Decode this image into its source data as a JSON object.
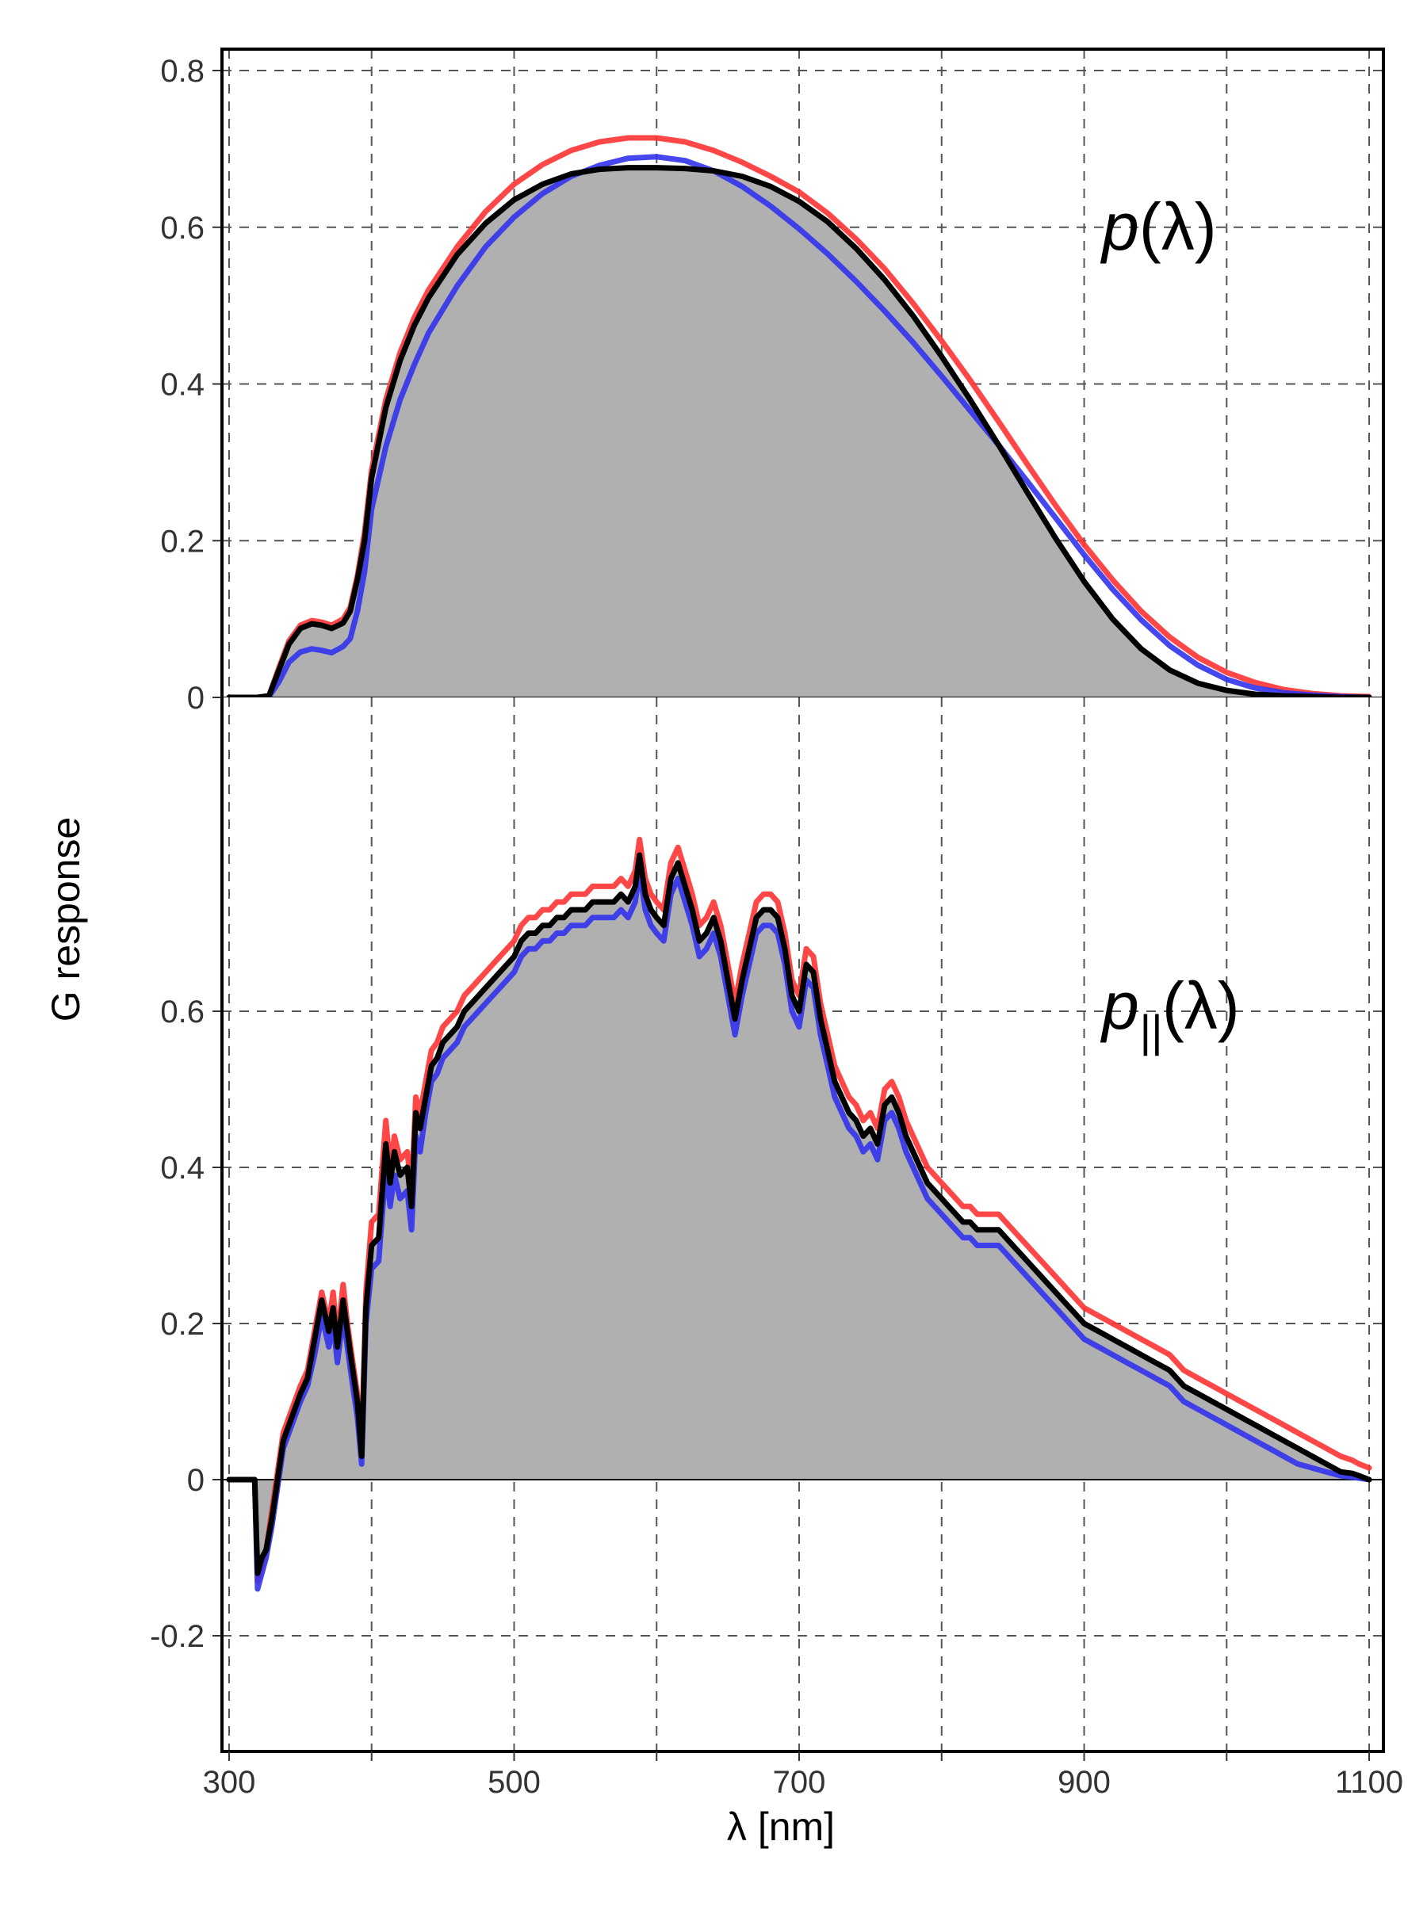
{
  "colors": {
    "fill": "#b0b0b0",
    "black_series": "#000000",
    "red_series": "#ff3333",
    "blue_series": "#3333ee",
    "grid": "#555555",
    "zero_line": "#000000"
  },
  "chart_data": {
    "type": "line",
    "title": "",
    "xlabel": "λ [nm]",
    "ylabel": "G response",
    "xlim": [
      295,
      1110
    ],
    "x_ticks": [
      300,
      500,
      700,
      900,
      1100
    ],
    "x_gridlines": [
      300,
      400,
      500,
      600,
      700,
      800,
      900,
      1000,
      1100
    ],
    "grid": "dashed, major x and y",
    "legend": "none",
    "panels": [
      {
        "label_main": "p",
        "label_sub": "",
        "label_arg": "(λ)",
        "ylim": [
          0,
          0.83
        ],
        "y_ticks": [
          0,
          0.2,
          0.4,
          0.6,
          0.8
        ],
        "y_tick_labels": [
          "0",
          "0.2",
          "0.4",
          "0.6",
          "0.8"
        ],
        "filled_area_series": "black",
        "x": [
          300,
          320,
          328,
          335,
          342,
          350,
          358,
          365,
          372,
          380,
          385,
          390,
          395,
          400,
          410,
          420,
          430,
          440,
          460,
          480,
          500,
          520,
          540,
          560,
          580,
          600,
          620,
          640,
          660,
          680,
          700,
          720,
          740,
          760,
          780,
          800,
          820,
          840,
          860,
          880,
          900,
          920,
          940,
          960,
          980,
          1000,
          1020,
          1040,
          1060,
          1080,
          1100
        ],
        "series": [
          {
            "color_key": "black_series",
            "values": [
              0,
              0,
              0.002,
              0.035,
              0.068,
              0.088,
              0.094,
              0.092,
              0.088,
              0.095,
              0.11,
              0.15,
              0.2,
              0.28,
              0.37,
              0.43,
              0.475,
              0.51,
              0.565,
              0.605,
              0.635,
              0.655,
              0.668,
              0.674,
              0.676,
              0.676,
              0.675,
              0.672,
              0.665,
              0.652,
              0.633,
              0.607,
              0.573,
              0.533,
              0.487,
              0.435,
              0.38,
              0.322,
              0.262,
              0.203,
              0.148,
              0.1,
              0.062,
              0.035,
              0.018,
              0.009,
              0.004,
              0.002,
              0.001,
              0,
              0
            ]
          },
          {
            "color_key": "red_series",
            "values": [
              0,
              0,
              0.002,
              0.038,
              0.072,
              0.092,
              0.098,
              0.096,
              0.092,
              0.1,
              0.115,
              0.155,
              0.21,
              0.29,
              0.38,
              0.44,
              0.485,
              0.52,
              0.575,
              0.62,
              0.655,
              0.68,
              0.698,
              0.709,
              0.714,
              0.714,
              0.709,
              0.698,
              0.683,
              0.665,
              0.645,
              0.618,
              0.585,
              0.547,
              0.503,
              0.455,
              0.405,
              0.352,
              0.298,
              0.245,
              0.195,
              0.15,
              0.11,
              0.077,
              0.051,
              0.032,
              0.019,
              0.01,
              0.005,
              0.002,
              0.001
            ]
          },
          {
            "color_key": "blue_series",
            "values": [
              0,
              0,
              0.001,
              0.02,
              0.045,
              0.058,
              0.062,
              0.06,
              0.057,
              0.065,
              0.075,
              0.11,
              0.16,
              0.24,
              0.32,
              0.38,
              0.425,
              0.465,
              0.525,
              0.575,
              0.613,
              0.643,
              0.665,
              0.679,
              0.688,
              0.69,
              0.685,
              0.672,
              0.652,
              0.627,
              0.598,
              0.566,
              0.531,
              0.493,
              0.453,
              0.41,
              0.366,
              0.322,
              0.276,
              0.229,
              0.182,
              0.138,
              0.099,
              0.066,
              0.041,
              0.023,
              0.012,
              0.006,
              0.003,
              0.001,
              0
            ]
          }
        ]
      },
      {
        "label_main": "p",
        "label_sub": "||",
        "label_arg": "(λ)",
        "ylim": [
          -0.33,
          0.88
        ],
        "y_ticks": [
          -0.2,
          0,
          0.2,
          0.4,
          0.6
        ],
        "y_tick_labels": [
          "-0.2",
          "0",
          "0.2",
          "0.4",
          "0.6"
        ],
        "filled_area_series": "black",
        "x": [
          300,
          318,
          320,
          323,
          326,
          330,
          334,
          338,
          342,
          346,
          350,
          355,
          360,
          365,
          370,
          373,
          376,
          380,
          383,
          386,
          390,
          393,
          396,
          400,
          405,
          410,
          413,
          416,
          420,
          425,
          428,
          431,
          434,
          438,
          442,
          446,
          450,
          455,
          460,
          465,
          470,
          475,
          480,
          485,
          490,
          495,
          500,
          505,
          510,
          515,
          520,
          525,
          530,
          535,
          540,
          545,
          550,
          555,
          560,
          565,
          570,
          575,
          580,
          585,
          588,
          592,
          596,
          600,
          605,
          610,
          615,
          620,
          625,
          630,
          635,
          640,
          645,
          650,
          655,
          660,
          665,
          670,
          675,
          680,
          685,
          690,
          695,
          700,
          705,
          710,
          715,
          720,
          725,
          730,
          735,
          740,
          745,
          750,
          755,
          760,
          765,
          770,
          775,
          780,
          785,
          790,
          795,
          800,
          805,
          810,
          815,
          820,
          825,
          830,
          835,
          840,
          845,
          850,
          855,
          860,
          870,
          880,
          890,
          900,
          910,
          920,
          930,
          940,
          950,
          960,
          970,
          980,
          990,
          1000,
          1010,
          1020,
          1030,
          1040,
          1050,
          1060,
          1070,
          1080,
          1088,
          1093,
          1100
        ],
        "series": [
          {
            "color_key": "black_series",
            "values": [
              0,
              0,
              -0.12,
              -0.1,
              -0.09,
              -0.05,
              0.0,
              0.05,
              0.07,
              0.09,
              0.11,
              0.13,
              0.18,
              0.23,
              0.19,
              0.22,
              0.17,
              0.23,
              0.19,
              0.15,
              0.1,
              0.03,
              0.22,
              0.3,
              0.31,
              0.43,
              0.38,
              0.42,
              0.39,
              0.4,
              0.35,
              0.47,
              0.45,
              0.49,
              0.53,
              0.54,
              0.56,
              0.57,
              0.58,
              0.6,
              0.61,
              0.62,
              0.63,
              0.64,
              0.65,
              0.66,
              0.67,
              0.69,
              0.7,
              0.7,
              0.71,
              0.71,
              0.72,
              0.72,
              0.73,
              0.73,
              0.73,
              0.74,
              0.74,
              0.74,
              0.74,
              0.75,
              0.74,
              0.76,
              0.8,
              0.75,
              0.73,
              0.72,
              0.71,
              0.77,
              0.79,
              0.76,
              0.73,
              0.69,
              0.7,
              0.72,
              0.69,
              0.64,
              0.59,
              0.64,
              0.68,
              0.72,
              0.73,
              0.73,
              0.72,
              0.68,
              0.62,
              0.6,
              0.66,
              0.65,
              0.59,
              0.55,
              0.51,
              0.49,
              0.47,
              0.46,
              0.44,
              0.45,
              0.43,
              0.48,
              0.49,
              0.47,
              0.44,
              0.42,
              0.4,
              0.38,
              0.37,
              0.36,
              0.35,
              0.34,
              0.33,
              0.33,
              0.32,
              0.32,
              0.32,
              0.32,
              0.31,
              0.3,
              0.29,
              0.28,
              0.26,
              0.24,
              0.22,
              0.2,
              0.19,
              0.18,
              0.17,
              0.16,
              0.15,
              0.14,
              0.12,
              0.11,
              0.1,
              0.09,
              0.08,
              0.07,
              0.06,
              0.05,
              0.04,
              0.03,
              0.02,
              0.01,
              0.008,
              0.005,
              0.0
            ]
          },
          {
            "color_key": "red_series",
            "values": [
              0,
              0,
              -0.13,
              -0.11,
              -0.09,
              -0.04,
              0.01,
              0.06,
              0.08,
              0.1,
              0.12,
              0.14,
              0.19,
              0.24,
              0.2,
              0.24,
              0.18,
              0.25,
              0.2,
              0.16,
              0.11,
              0.04,
              0.24,
              0.33,
              0.34,
              0.46,
              0.4,
              0.44,
              0.41,
              0.42,
              0.37,
              0.49,
              0.47,
              0.51,
              0.55,
              0.56,
              0.58,
              0.59,
              0.6,
              0.62,
              0.63,
              0.64,
              0.65,
              0.66,
              0.67,
              0.68,
              0.69,
              0.71,
              0.72,
              0.72,
              0.73,
              0.73,
              0.74,
              0.74,
              0.75,
              0.75,
              0.75,
              0.76,
              0.76,
              0.76,
              0.76,
              0.77,
              0.76,
              0.78,
              0.82,
              0.77,
              0.75,
              0.74,
              0.73,
              0.79,
              0.81,
              0.78,
              0.75,
              0.71,
              0.72,
              0.74,
              0.71,
              0.66,
              0.61,
              0.66,
              0.7,
              0.74,
              0.75,
              0.75,
              0.74,
              0.7,
              0.64,
              0.62,
              0.68,
              0.67,
              0.61,
              0.57,
              0.53,
              0.51,
              0.49,
              0.48,
              0.46,
              0.47,
              0.45,
              0.5,
              0.51,
              0.49,
              0.46,
              0.44,
              0.42,
              0.4,
              0.39,
              0.38,
              0.37,
              0.36,
              0.35,
              0.35,
              0.34,
              0.34,
              0.34,
              0.34,
              0.33,
              0.32,
              0.31,
              0.3,
              0.28,
              0.26,
              0.24,
              0.22,
              0.21,
              0.2,
              0.19,
              0.18,
              0.17,
              0.16,
              0.14,
              0.13,
              0.12,
              0.11,
              0.1,
              0.09,
              0.08,
              0.07,
              0.06,
              0.05,
              0.04,
              0.03,
              0.025,
              0.02,
              0.015
            ]
          },
          {
            "color_key": "blue_series",
            "values": [
              0,
              0,
              -0.14,
              -0.12,
              -0.1,
              -0.06,
              -0.01,
              0.04,
              0.06,
              0.08,
              0.1,
              0.12,
              0.16,
              0.21,
              0.17,
              0.2,
              0.15,
              0.21,
              0.17,
              0.13,
              0.08,
              0.02,
              0.2,
              0.27,
              0.28,
              0.4,
              0.35,
              0.39,
              0.36,
              0.37,
              0.32,
              0.44,
              0.42,
              0.47,
              0.51,
              0.52,
              0.54,
              0.55,
              0.56,
              0.58,
              0.59,
              0.6,
              0.61,
              0.62,
              0.63,
              0.64,
              0.65,
              0.67,
              0.68,
              0.68,
              0.69,
              0.69,
              0.7,
              0.7,
              0.71,
              0.71,
              0.71,
              0.72,
              0.72,
              0.72,
              0.72,
              0.73,
              0.72,
              0.74,
              0.78,
              0.73,
              0.71,
              0.7,
              0.69,
              0.75,
              0.77,
              0.74,
              0.71,
              0.67,
              0.68,
              0.7,
              0.67,
              0.62,
              0.57,
              0.62,
              0.66,
              0.7,
              0.71,
              0.71,
              0.7,
              0.66,
              0.6,
              0.58,
              0.64,
              0.63,
              0.57,
              0.53,
              0.49,
              0.47,
              0.45,
              0.44,
              0.42,
              0.43,
              0.41,
              0.46,
              0.47,
              0.45,
              0.42,
              0.4,
              0.38,
              0.36,
              0.35,
              0.34,
              0.33,
              0.32,
              0.31,
              0.31,
              0.3,
              0.3,
              0.3,
              0.3,
              0.29,
              0.28,
              0.27,
              0.26,
              0.24,
              0.22,
              0.2,
              0.18,
              0.17,
              0.16,
              0.15,
              0.14,
              0.13,
              0.12,
              0.1,
              0.09,
              0.08,
              0.07,
              0.06,
              0.05,
              0.04,
              0.03,
              0.02,
              0.015,
              0.01,
              0.005,
              0.003,
              0.002,
              0.0
            ]
          }
        ]
      }
    ]
  }
}
